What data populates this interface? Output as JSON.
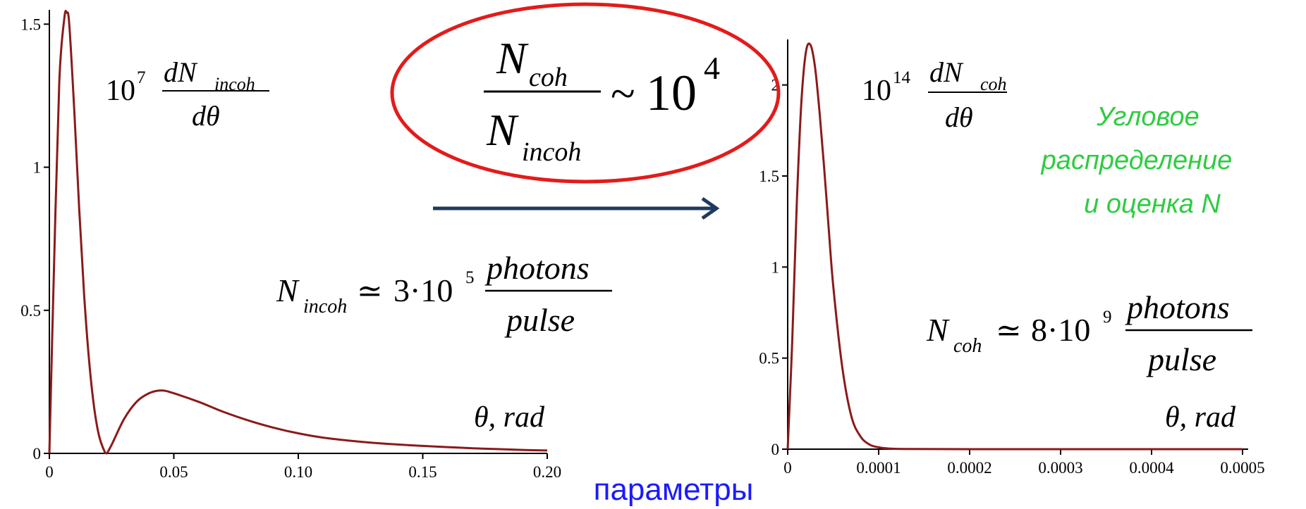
{
  "colors": {
    "curve": "#8b1a1a",
    "ellipse": "#e31b1b",
    "arrow": "#1f3a5f",
    "green_text": "#2ecc40",
    "blue_text": "#1a1aff",
    "axis": "#000000"
  },
  "formulas": {
    "left_label": {
      "coef": "10",
      "exp": "7",
      "num": "dN",
      "num_sub": "incoh",
      "den": "dθ"
    },
    "right_label": {
      "coef": "10",
      "exp": "14",
      "num": "dN",
      "num_sub": "coh",
      "den": "dθ"
    },
    "ratio": {
      "num": "N",
      "num_sub": "coh",
      "den": "N",
      "den_sub": "incoh",
      "sim": "~",
      "base": "10",
      "exp": "4"
    },
    "n_incoh": {
      "lhs": "N",
      "lhs_sub": "incoh",
      "rel": "≃",
      "mant": "3·10",
      "exp": "5",
      "num": "photons",
      "den": "pulse"
    },
    "n_coh": {
      "lhs": "N",
      "lhs_sub": "coh",
      "rel": "≃",
      "mant": "8·10",
      "exp": "9",
      "num": "photons",
      "den": "pulse"
    },
    "axis_label_left": "θ, rad",
    "axis_label_right": "θ, rad"
  },
  "green_text": [
    "Угловое",
    "распределение",
    "и оценка N"
  ],
  "bottom_text": "параметры",
  "chart_data": [
    {
      "type": "line",
      "xlim": [
        0,
        0.2
      ],
      "ylim": [
        0,
        1.55
      ],
      "x_ticks": [
        "0",
        "0.05",
        "0.10",
        "0.15",
        "0.20"
      ],
      "x_tick_values": [
        0,
        0.05,
        0.1,
        0.15,
        0.2
      ],
      "y_ticks": [
        "0",
        "0.5",
        "1",
        "1.5"
      ],
      "y_tick_values": [
        0,
        0.5,
        1,
        1.5
      ],
      "series": [
        {
          "x": [
            0,
            0.002,
            0.004,
            0.006,
            0.007,
            0.008,
            0.01,
            0.012,
            0.014,
            0.016,
            0.018,
            0.02,
            0.022,
            0.023,
            0.025,
            0.03,
            0.035,
            0.04,
            0.045,
            0.05,
            0.06,
            0.07,
            0.08,
            0.09,
            0.1,
            0.11,
            0.12,
            0.13,
            0.14,
            0.15,
            0.16,
            0.17,
            0.18,
            0.19,
            0.2
          ],
          "y": [
            0,
            0.7,
            1.3,
            1.52,
            1.54,
            1.5,
            1.2,
            0.85,
            0.55,
            0.32,
            0.16,
            0.06,
            0.01,
            0.0,
            0.03,
            0.12,
            0.18,
            0.21,
            0.22,
            0.21,
            0.18,
            0.145,
            0.115,
            0.09,
            0.07,
            0.055,
            0.045,
            0.037,
            0.031,
            0.026,
            0.022,
            0.018,
            0.015,
            0.012,
            0.01
          ]
        }
      ]
    },
    {
      "type": "line",
      "xlim": [
        0,
        0.0005
      ],
      "ylim": [
        0,
        2.25
      ],
      "x_ticks": [
        "0",
        "0.0001",
        "0.0002",
        "0.0003",
        "0.0004",
        "0.0005"
      ],
      "x_tick_values": [
        0,
        0.0001,
        0.0002,
        0.0003,
        0.0004,
        0.0005
      ],
      "y_ticks": [
        "0",
        "0.5",
        "1",
        "1.5",
        "2"
      ],
      "y_tick_values": [
        0,
        0.5,
        1,
        1.5,
        2
      ],
      "series": [
        {
          "x": [
            0,
            5e-06,
            1e-05,
            1.5e-05,
            2e-05,
            2.5e-05,
            3e-05,
            3.5e-05,
            4e-05,
            4.5e-05,
            5e-05,
            6e-05,
            7e-05,
            8e-05,
            9e-05,
            0.0001,
            0.00011,
            0.00013,
            0.0002,
            0.0003,
            0.0004,
            0.0005
          ],
          "y": [
            0,
            0.6,
            1.35,
            1.9,
            2.18,
            2.22,
            2.1,
            1.85,
            1.55,
            1.22,
            0.9,
            0.45,
            0.18,
            0.07,
            0.025,
            0.01,
            0.004,
            0.001,
            0,
            0,
            0,
            0
          ]
        }
      ]
    }
  ]
}
